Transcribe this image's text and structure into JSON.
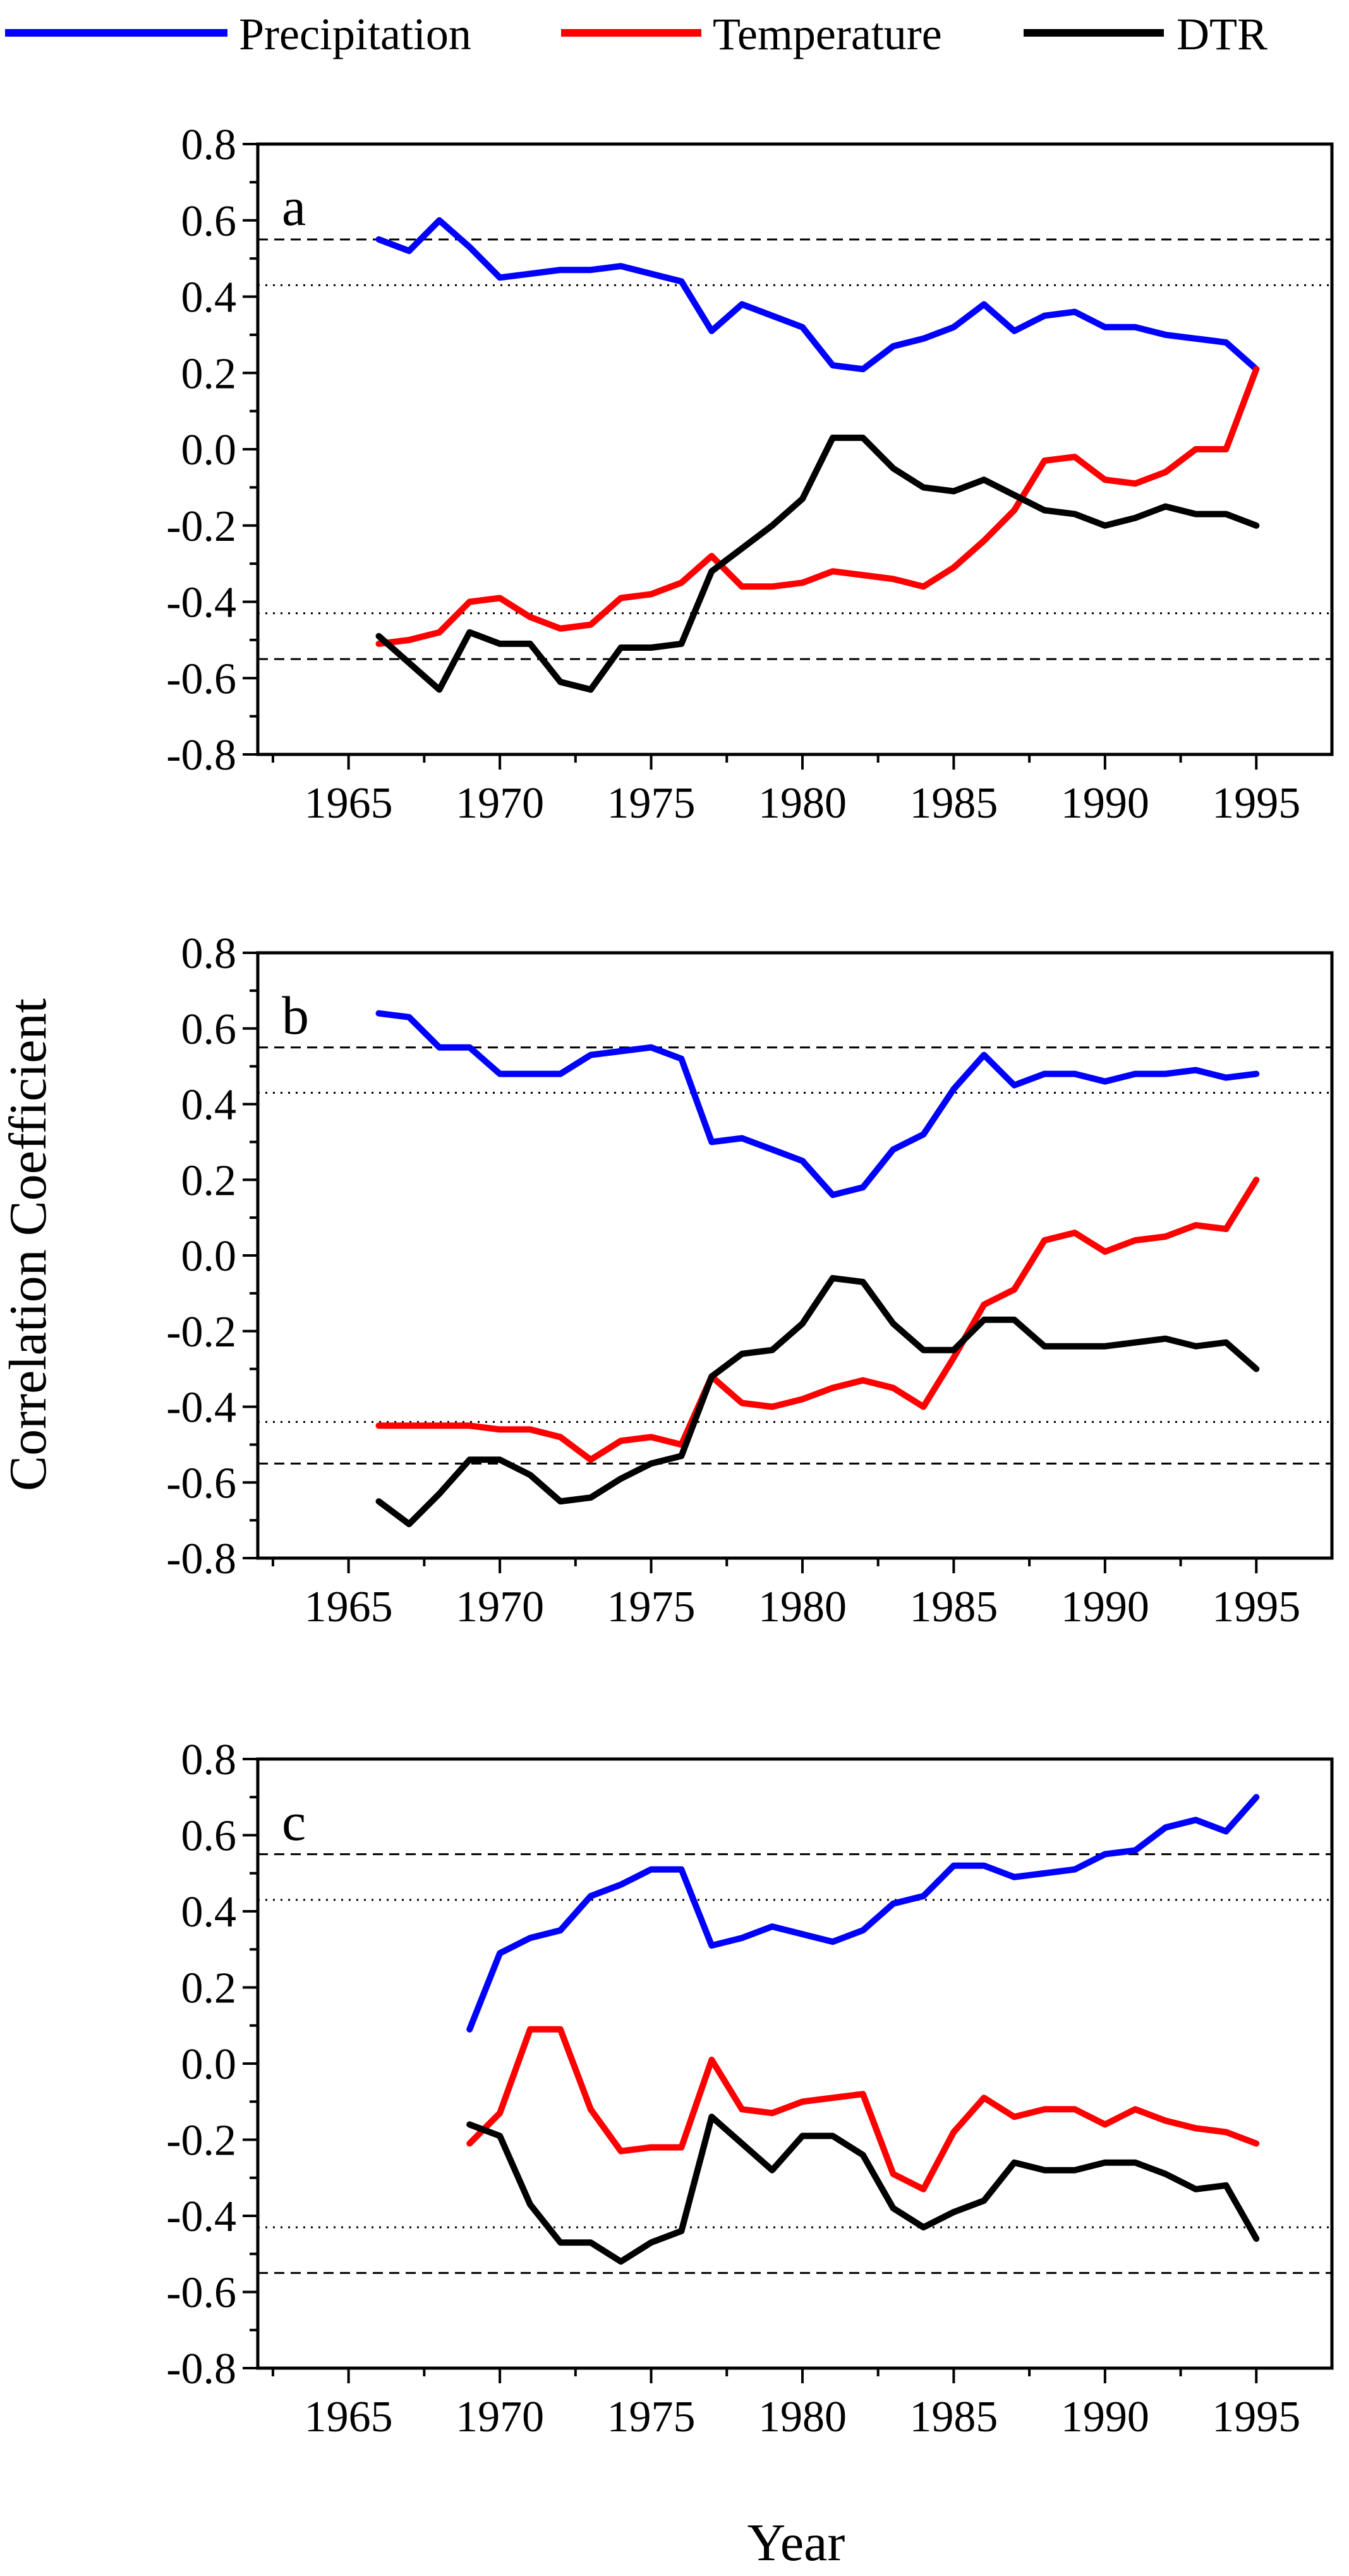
{
  "legend": [
    {
      "name": "Precipitation",
      "color": "#0000ff"
    },
    {
      "name": "Temperature",
      "color": "#ff0000"
    },
    {
      "name": "DTR",
      "color": "#000000"
    }
  ],
  "y_axis_label": "Correlation Coefficient",
  "x_axis_label": "Year",
  "chart_data": [
    {
      "type": "line",
      "panel": "a",
      "xlim": [
        1962,
        1997.5
      ],
      "ylim": [
        -0.8,
        0.8
      ],
      "xticks": [
        "1965",
        "1970",
        "1975",
        "1980",
        "1985",
        "1990",
        "1995"
      ],
      "yticks": [
        "0.8",
        "0.6",
        "0.4",
        "0.2",
        "0.0",
        "-0.2",
        "-0.4",
        "-0.6",
        "-0.8"
      ],
      "thresholds": {
        "dashed": [
          0.55,
          -0.55
        ],
        "dotted": [
          0.43,
          -0.43
        ]
      },
      "x": [
        1966,
        1967,
        1968,
        1969,
        1970,
        1971,
        1972,
        1973,
        1974,
        1975,
        1976,
        1977,
        1978,
        1979,
        1980,
        1981,
        1982,
        1983,
        1984,
        1985,
        1986,
        1987,
        1988,
        1989,
        1990,
        1991,
        1992,
        1993,
        1994,
        1995
      ],
      "series": [
        {
          "name": "Precipitation",
          "color": "#0000ff",
          "values": [
            0.55,
            0.52,
            0.6,
            0.53,
            0.45,
            0.46,
            0.47,
            0.47,
            0.48,
            0.46,
            0.44,
            0.31,
            0.38,
            0.35,
            0.32,
            0.22,
            0.21,
            0.27,
            0.29,
            0.32,
            0.38,
            0.31,
            0.35,
            0.36,
            0.32,
            0.32,
            0.3,
            0.29,
            0.28,
            0.21
          ]
        },
        {
          "name": "Temperature",
          "color": "#ff0000",
          "values": [
            -0.51,
            -0.5,
            -0.48,
            -0.4,
            -0.39,
            -0.44,
            -0.47,
            -0.46,
            -0.39,
            -0.38,
            -0.35,
            -0.28,
            -0.36,
            -0.36,
            -0.35,
            -0.32,
            -0.33,
            -0.34,
            -0.36,
            -0.31,
            -0.24,
            -0.16,
            -0.03,
            -0.02,
            -0.08,
            -0.09,
            -0.06,
            0.0,
            0.0,
            0.21
          ]
        },
        {
          "name": "DTR",
          "color": "#000000",
          "values": [
            -0.49,
            -0.56,
            -0.63,
            -0.48,
            -0.51,
            -0.51,
            -0.61,
            -0.63,
            -0.52,
            -0.52,
            -0.51,
            -0.32,
            -0.26,
            -0.2,
            -0.13,
            0.03,
            0.03,
            -0.05,
            -0.1,
            -0.11,
            -0.08,
            -0.12,
            -0.16,
            -0.17,
            -0.2,
            -0.18,
            -0.15,
            -0.17,
            -0.17,
            -0.2
          ]
        }
      ]
    },
    {
      "type": "line",
      "panel": "b",
      "xlim": [
        1962,
        1997.5
      ],
      "ylim": [
        -0.8,
        0.8
      ],
      "xticks": [
        "1965",
        "1970",
        "1975",
        "1980",
        "1985",
        "1990",
        "1995"
      ],
      "yticks": [
        "0.8",
        "0.6",
        "0.4",
        "0.2",
        "0.0",
        "-0.2",
        "-0.4",
        "-0.6",
        "-0.8"
      ],
      "thresholds": {
        "dashed": [
          0.55,
          -0.55
        ],
        "dotted": [
          0.43,
          -0.44
        ]
      },
      "x": [
        1966,
        1967,
        1968,
        1969,
        1970,
        1971,
        1972,
        1973,
        1974,
        1975,
        1976,
        1977,
        1978,
        1979,
        1980,
        1981,
        1982,
        1983,
        1984,
        1985,
        1986,
        1987,
        1988,
        1989,
        1990,
        1991,
        1992,
        1993,
        1994,
        1995
      ],
      "series": [
        {
          "name": "Precipitation",
          "color": "#0000ff",
          "values": [
            0.64,
            0.63,
            0.55,
            0.55,
            0.48,
            0.48,
            0.48,
            0.53,
            0.54,
            0.55,
            0.52,
            0.3,
            0.31,
            0.28,
            0.25,
            0.16,
            0.18,
            0.28,
            0.32,
            0.44,
            0.53,
            0.45,
            0.48,
            0.48,
            0.46,
            0.48,
            0.48,
            0.49,
            0.47,
            0.48
          ]
        },
        {
          "name": "Temperature",
          "color": "#ff0000",
          "values": [
            -0.45,
            -0.45,
            -0.45,
            -0.45,
            -0.46,
            -0.46,
            -0.48,
            -0.54,
            -0.49,
            -0.48,
            -0.5,
            -0.32,
            -0.39,
            -0.4,
            -0.38,
            -0.35,
            -0.33,
            -0.35,
            -0.4,
            -0.27,
            -0.13,
            -0.09,
            0.04,
            0.06,
            0.01,
            0.04,
            0.05,
            0.08,
            0.07,
            0.2
          ]
        },
        {
          "name": "DTR",
          "color": "#000000",
          "values": [
            -0.65,
            -0.71,
            -0.63,
            -0.54,
            -0.54,
            -0.58,
            -0.65,
            -0.64,
            -0.59,
            -0.55,
            -0.53,
            -0.32,
            -0.26,
            -0.25,
            -0.18,
            -0.06,
            -0.07,
            -0.18,
            -0.25,
            -0.25,
            -0.17,
            -0.17,
            -0.24,
            -0.24,
            -0.24,
            -0.23,
            -0.22,
            -0.24,
            -0.23,
            -0.3
          ]
        }
      ]
    },
    {
      "type": "line",
      "panel": "c",
      "xlim": [
        1962,
        1997.5
      ],
      "ylim": [
        -0.8,
        0.8
      ],
      "xticks": [
        "1965",
        "1970",
        "1975",
        "1980",
        "1985",
        "1990",
        "1995"
      ],
      "yticks": [
        "0.8",
        "0.6",
        "0.4",
        "0.2",
        "0.0",
        "-0.2",
        "-0.4",
        "-0.6",
        "-0.8"
      ],
      "thresholds": {
        "dashed": [
          0.55,
          -0.55
        ],
        "dotted": [
          0.43,
          -0.43
        ]
      },
      "x": [
        1969,
        1970,
        1971,
        1972,
        1973,
        1974,
        1975,
        1976,
        1977,
        1978,
        1979,
        1980,
        1981,
        1982,
        1983,
        1984,
        1985,
        1986,
        1987,
        1988,
        1989,
        1990,
        1991,
        1992,
        1993,
        1994,
        1995
      ],
      "series": [
        {
          "name": "Precipitation",
          "color": "#0000ff",
          "values": [
            0.09,
            0.29,
            0.33,
            0.35,
            0.44,
            0.47,
            0.51,
            0.51,
            0.31,
            0.33,
            0.36,
            0.34,
            0.32,
            0.35,
            0.42,
            0.44,
            0.52,
            0.52,
            0.49,
            0.5,
            0.51,
            0.55,
            0.56,
            0.62,
            0.64,
            0.61,
            0.7
          ]
        },
        {
          "name": "Temperature",
          "color": "#ff0000",
          "values": [
            -0.21,
            -0.13,
            0.09,
            0.09,
            -0.12,
            -0.23,
            -0.22,
            -0.22,
            0.01,
            -0.12,
            -0.13,
            -0.1,
            -0.09,
            -0.08,
            -0.29,
            -0.33,
            -0.18,
            -0.09,
            -0.14,
            -0.12,
            -0.12,
            -0.16,
            -0.12,
            -0.15,
            -0.17,
            -0.18,
            -0.21
          ]
        },
        {
          "name": "DTR",
          "color": "#000000",
          "values": [
            -0.16,
            -0.19,
            -0.37,
            -0.47,
            -0.47,
            -0.52,
            -0.47,
            -0.44,
            -0.14,
            -0.21,
            -0.28,
            -0.19,
            -0.19,
            -0.24,
            -0.38,
            -0.43,
            -0.39,
            -0.36,
            -0.26,
            -0.28,
            -0.28,
            -0.26,
            -0.26,
            -0.29,
            -0.33,
            -0.32,
            -0.46
          ]
        }
      ]
    }
  ]
}
